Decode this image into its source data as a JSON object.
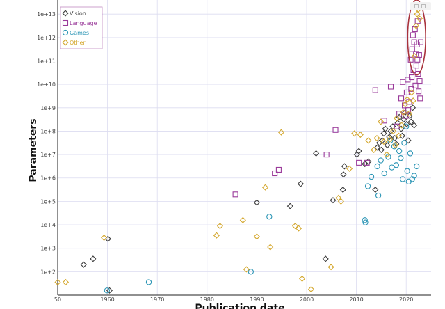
{
  "chart_data": {
    "type": "scatter",
    "xlabel": "Publication date",
    "ylabel": "Parameters",
    "xlim": [
      1950,
      2025
    ],
    "ylog": true,
    "ylim_exponents": [
      1,
      13.6
    ],
    "x_ticks": [
      "50",
      "1960",
      "1970",
      "1980",
      "1990",
      "2000",
      "2010",
      "2020"
    ],
    "y_ticks": [
      "1e+2",
      "1e+3",
      "1e+4",
      "1e+5",
      "1e+6",
      "1e+7",
      "1e+8",
      "1e+9",
      "1e+10",
      "1e+11",
      "1e+12",
      "1e+13"
    ],
    "grid": true,
    "legend_position": "top-left",
    "annotation": {
      "type": "ellipse",
      "color": "#a8323c",
      "center": [
        2022.1,
        12.0
      ],
      "radii_data": [
        1.8,
        1.6
      ]
    },
    "series": [
      {
        "name": "Vision",
        "marker": "diamond",
        "color": "#3b3b3b",
        "points": [
          [
            1955.2,
            2.3
          ],
          [
            1957.1,
            2.55
          ],
          [
            1960.1,
            3.4
          ],
          [
            1960.4,
            1.2
          ],
          [
            1990.0,
            4.95
          ],
          [
            1996.7,
            4.8
          ],
          [
            1998.8,
            5.75
          ],
          [
            2001.9,
            7.05
          ],
          [
            2003.8,
            2.55
          ],
          [
            2005.3,
            5.05
          ],
          [
            2007.3,
            5.5
          ],
          [
            2007.4,
            6.15
          ],
          [
            2007.6,
            6.5
          ],
          [
            2010.1,
            7.0
          ],
          [
            2010.5,
            7.15
          ],
          [
            2011.7,
            6.6
          ],
          [
            2012.4,
            6.7
          ],
          [
            2013.8,
            5.5
          ],
          [
            2014.2,
            7.3
          ],
          [
            2014.6,
            7.5
          ],
          [
            2015.0,
            7.2
          ],
          [
            2015.2,
            7.6
          ],
          [
            2015.5,
            7.9
          ],
          [
            2015.8,
            8.1
          ],
          [
            2016.2,
            7.4
          ],
          [
            2016.6,
            7.75
          ],
          [
            2016.9,
            8.0
          ],
          [
            2017.3,
            8.2
          ],
          [
            2017.7,
            7.7
          ],
          [
            2018.0,
            7.45
          ],
          [
            2018.3,
            8.35
          ],
          [
            2018.6,
            8.6
          ],
          [
            2019.0,
            8.1
          ],
          [
            2019.2,
            7.8
          ],
          [
            2019.5,
            8.5
          ],
          [
            2019.8,
            8.8
          ],
          [
            2020.1,
            8.3
          ],
          [
            2020.4,
            7.6
          ],
          [
            2020.7,
            8.65
          ],
          [
            2021.0,
            8.4
          ],
          [
            2021.3,
            9.0
          ],
          [
            2021.6,
            8.25
          ]
        ]
      },
      {
        "name": "Language",
        "marker": "square",
        "color": "#9a3a9a",
        "points": [
          [
            1985.7,
            5.3
          ],
          [
            1993.6,
            6.2
          ],
          [
            1994.4,
            6.35
          ],
          [
            2004.0,
            7.0
          ],
          [
            2005.8,
            8.05
          ],
          [
            2010.5,
            6.65
          ],
          [
            2012.1,
            6.65
          ],
          [
            2013.8,
            9.75
          ],
          [
            2015.6,
            8.45
          ],
          [
            2016.9,
            9.9
          ],
          [
            2018.1,
            8.2
          ],
          [
            2018.6,
            8.75
          ],
          [
            2019.0,
            9.4
          ],
          [
            2019.3,
            10.1
          ],
          [
            2019.7,
            9.1
          ],
          [
            2019.9,
            8.65
          ],
          [
            2020.1,
            9.65
          ],
          [
            2020.3,
            10.2
          ],
          [
            2020.4,
            8.9
          ],
          [
            2020.6,
            9.25
          ],
          [
            2020.9,
            11.05
          ],
          [
            2021.0,
            9.8
          ],
          [
            2021.1,
            10.3
          ],
          [
            2021.2,
            11.5
          ],
          [
            2021.35,
            12.1
          ],
          [
            2021.45,
            10.6
          ],
          [
            2021.6,
            11.8
          ],
          [
            2021.75,
            12.35
          ],
          [
            2021.85,
            9.95
          ],
          [
            2021.95,
            11.3
          ],
          [
            2022.05,
            10.8
          ],
          [
            2022.15,
            11.7
          ],
          [
            2022.25,
            11.05
          ],
          [
            2022.3,
            12.7
          ],
          [
            2022.4,
            10.45
          ],
          [
            2022.5,
            9.7
          ],
          [
            2022.6,
            11.25
          ],
          [
            2022.7,
            10.15
          ],
          [
            2022.8,
            9.4
          ],
          [
            2022.9,
            11.8
          ]
        ]
      },
      {
        "name": "Games",
        "marker": "circle",
        "color": "#2b95b5",
        "points": [
          [
            1959.9,
            1.2
          ],
          [
            1968.3,
            1.55
          ],
          [
            1988.8,
            2.0
          ],
          [
            1992.5,
            4.35
          ],
          [
            2011.7,
            4.2
          ],
          [
            2011.8,
            4.1
          ],
          [
            2014.2,
            6.5
          ],
          [
            2014.9,
            6.75
          ],
          [
            2015.6,
            6.2
          ],
          [
            2016.4,
            6.9
          ],
          [
            2016.8,
            7.6
          ],
          [
            2017.1,
            6.45
          ],
          [
            2017.6,
            7.35
          ],
          [
            2018.0,
            6.55
          ],
          [
            2018.6,
            7.15
          ],
          [
            2018.9,
            6.85
          ],
          [
            2019.3,
            5.95
          ],
          [
            2019.6,
            7.5
          ],
          [
            2020.0,
            8.2
          ],
          [
            2020.2,
            6.3
          ],
          [
            2020.5,
            5.85
          ],
          [
            2020.8,
            7.05
          ],
          [
            2021.2,
            5.95
          ],
          [
            2021.6,
            6.1
          ],
          [
            2022.1,
            6.5
          ],
          [
            2013.0,
            6.05
          ],
          [
            2012.3,
            5.65
          ],
          [
            2014.4,
            5.25
          ]
        ]
      },
      {
        "name": "Other",
        "marker": "diamond",
        "color": "#d4a72c",
        "points": [
          [
            1950.0,
            1.55
          ],
          [
            1951.6,
            1.55
          ],
          [
            1959.3,
            3.45
          ],
          [
            1981.9,
            3.55
          ],
          [
            1982.6,
            3.95
          ],
          [
            1987.2,
            4.2
          ],
          [
            1987.9,
            2.1
          ],
          [
            1990.0,
            3.5
          ],
          [
            1991.7,
            5.6
          ],
          [
            1992.7,
            3.05
          ],
          [
            1994.9,
            7.95
          ],
          [
            1997.7,
            3.95
          ],
          [
            1998.4,
            3.85
          ],
          [
            1999.1,
            1.7
          ],
          [
            2000.9,
            1.25
          ],
          [
            2004.9,
            2.2
          ],
          [
            2006.4,
            5.15
          ],
          [
            2006.9,
            5.0
          ],
          [
            2008.6,
            6.4
          ],
          [
            2009.6,
            7.9
          ],
          [
            2010.8,
            7.85
          ],
          [
            2012.4,
            7.6
          ],
          [
            2013.5,
            7.2
          ],
          [
            2014.1,
            7.7
          ],
          [
            2014.9,
            8.4
          ],
          [
            2015.5,
            7.55
          ],
          [
            2016.1,
            7.0
          ],
          [
            2016.7,
            7.65
          ],
          [
            2017.4,
            8.0
          ],
          [
            2017.8,
            7.4
          ],
          [
            2018.1,
            8.55
          ],
          [
            2018.5,
            7.8
          ],
          [
            2019.1,
            8.25
          ],
          [
            2019.4,
            8.8
          ],
          [
            2019.8,
            9.15
          ],
          [
            2020.2,
            9.35
          ],
          [
            2020.6,
            8.75
          ],
          [
            2021.1,
            9.65
          ],
          [
            2021.4,
            9.3
          ],
          [
            2021.7,
            11.2
          ],
          [
            2022.0,
            12.5
          ],
          [
            2022.2,
            13.0
          ],
          [
            2022.45,
            13.2
          ],
          [
            2022.7,
            12.8
          ]
        ]
      }
    ]
  }
}
